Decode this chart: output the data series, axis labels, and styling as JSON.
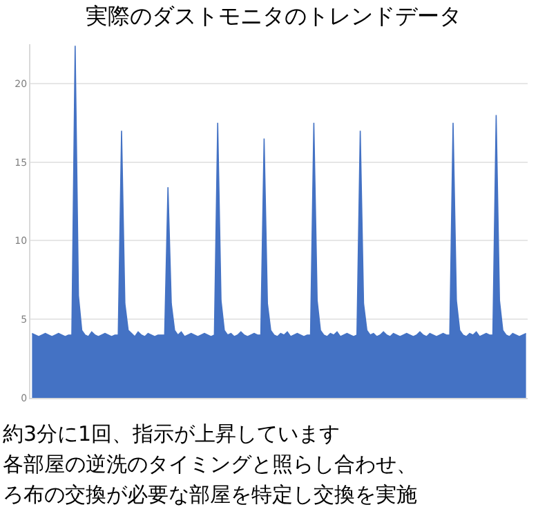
{
  "chart_data": {
    "type": "area",
    "title": "実際のダストモニタのトレンドデータ",
    "categories": [
      null,
      null,
      null,
      null,
      null,
      null,
      null,
      null,
      null,
      null,
      null,
      null,
      null,
      null,
      null,
      null,
      null,
      null,
      null,
      null,
      null,
      null,
      null,
      null,
      null,
      null,
      null,
      null,
      null,
      null,
      null,
      null,
      null,
      null,
      null,
      null,
      null,
      null,
      null,
      null,
      null,
      null,
      null,
      null,
      null,
      null,
      null,
      null,
      null,
      null,
      null,
      null,
      null,
      null,
      null,
      null,
      null,
      null,
      null,
      null,
      null,
      null,
      null,
      null,
      null,
      null,
      null,
      null,
      null,
      null,
      null,
      null,
      null,
      null,
      null,
      null,
      null,
      null,
      null,
      null,
      null,
      null,
      null,
      null,
      null,
      null,
      null,
      null,
      null,
      null,
      null,
      null,
      null,
      null,
      null,
      null,
      null,
      null,
      null,
      null,
      null,
      null,
      null,
      null,
      null,
      null,
      null,
      null,
      null,
      null,
      null,
      null,
      null,
      null,
      null,
      null,
      null,
      null,
      null,
      null,
      null,
      null,
      null,
      null,
      null,
      null,
      null,
      null,
      null,
      null,
      null,
      null,
      null,
      null,
      null,
      null,
      null,
      null,
      null,
      null,
      null,
      null,
      null,
      null,
      null,
      null,
      null,
      null,
      null,
      null
    ],
    "values": [
      4.1,
      4.0,
      3.9,
      4.0,
      4.1,
      4.0,
      3.9,
      4.0,
      4.1,
      4.0,
      3.9,
      4.0,
      4.0,
      22.4,
      6.5,
      4.3,
      4.0,
      3.9,
      4.2,
      4.0,
      3.9,
      4.0,
      4.1,
      4.0,
      3.9,
      4.0,
      4.0,
      17,
      6,
      4.3,
      4.1,
      3.9,
      4.2,
      4.0,
      3.9,
      4.1,
      4.0,
      3.9,
      4.0,
      4.0,
      4.0,
      13.4,
      6,
      4.3,
      4.0,
      4.2,
      3.9,
      4.0,
      4.1,
      4.0,
      3.9,
      4.0,
      4.1,
      4.0,
      3.9,
      4.0,
      17.5,
      6.2,
      4.3,
      4.0,
      4.1,
      3.9,
      4.0,
      4.2,
      4.0,
      3.9,
      4.0,
      4.1,
      4.0,
      4.0,
      16.5,
      6,
      4.3,
      4.0,
      3.9,
      4.1,
      4.0,
      4.2,
      3.9,
      4.0,
      4.1,
      4.0,
      3.9,
      4.0,
      4.0,
      17.5,
      6.2,
      4.3,
      4.0,
      3.9,
      4.1,
      4.0,
      4.2,
      3.9,
      4.0,
      4.1,
      4.0,
      3.9,
      4.0,
      17,
      6,
      4.3,
      4.0,
      4.1,
      3.9,
      4.0,
      4.2,
      4.0,
      3.9,
      4.1,
      4.0,
      3.9,
      4.0,
      4.1,
      4.0,
      3.9,
      4.0,
      4.2,
      4.0,
      3.9,
      4.1,
      4.0,
      3.9,
      4.0,
      4.1,
      4.0,
      4.0,
      17.5,
      6.2,
      4.3,
      4.0,
      3.9,
      4.1,
      4.0,
      4.2,
      3.9,
      4.0,
      4.1,
      4.0,
      4.0,
      18,
      6.2,
      4.3,
      4.0,
      3.9,
      4.1,
      4.0,
      3.9,
      4.0,
      4.1
    ],
    "color": "#4472c4",
    "ylim": [
      0,
      22.5
    ],
    "yticks": [
      0,
      5,
      10,
      15,
      20
    ],
    "grid": "y",
    "tick_labels": "y",
    "annotations": [
      "約3分に1回、指示が上昇しています",
      "各部屋の逆洗のタイミングと照らし合わせ、",
      "ろ布の交換が必要な部屋を特定し交換を実施"
    ]
  }
}
